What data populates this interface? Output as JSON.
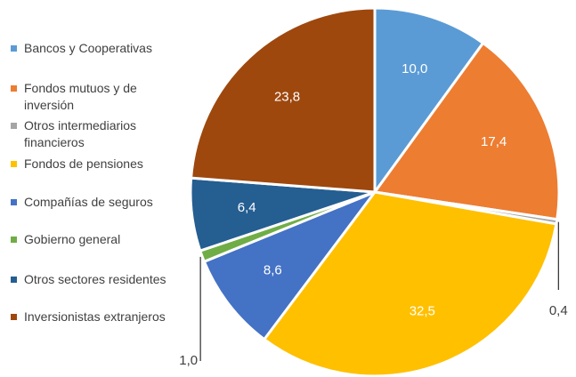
{
  "chart_data": {
    "type": "pie",
    "categories": [
      "Bancos y Cooperativas",
      "Fondos mutuos y de inversión",
      "Otros intermediarios financieros",
      "Fondos de pensiones",
      "Compañías de seguros",
      "Gobierno general",
      "Otros sectores residentes",
      "Inversionistas extranjeros"
    ],
    "values": [
      10.0,
      17.4,
      0.4,
      32.5,
      8.6,
      1.0,
      6.4,
      23.8
    ],
    "value_labels": [
      "10,0",
      "17,4",
      "0,4",
      "32,5",
      "8,6",
      "1,0",
      "6,4",
      "23,8"
    ],
    "colors": [
      "#5b9bd5",
      "#ed7d31",
      "#a5a5a5",
      "#ffc000",
      "#4472c4",
      "#70ad47",
      "#255e91",
      "#9e480e"
    ],
    "legend": "left"
  }
}
